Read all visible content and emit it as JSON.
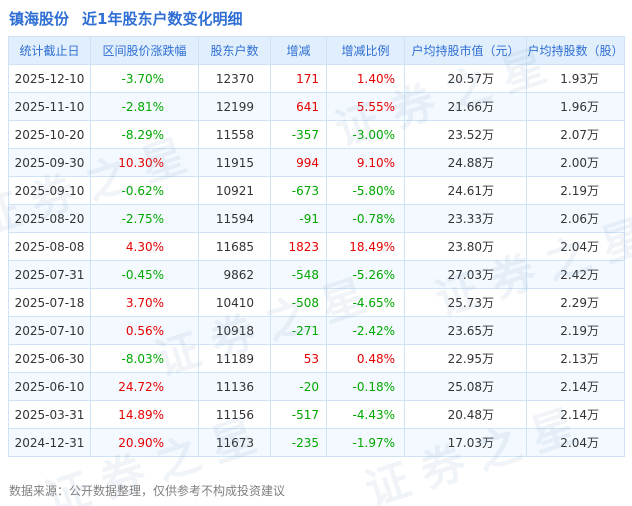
{
  "title": {
    "stock": "镇海股份",
    "report": "近1年股东户数变化明细"
  },
  "chart_data": {
    "type": "table",
    "title": "镇海股份 近1年股东户数变化明细",
    "columns": [
      {
        "key": "date",
        "label": "统计截止日",
        "signed": false
      },
      {
        "key": "range_change",
        "label": "区间股价涨跌幅",
        "signed": true
      },
      {
        "key": "holders",
        "label": "股东户数",
        "signed": false
      },
      {
        "key": "delta",
        "label": "增减",
        "signed": true
      },
      {
        "key": "delta_pct",
        "label": "增减比例",
        "signed": true
      },
      {
        "key": "avg_market_value",
        "label": "户均持股市值（元）",
        "signed": false
      },
      {
        "key": "avg_shares",
        "label": "户均持股数（股）",
        "signed": false
      }
    ],
    "rows": [
      {
        "date": "2025-12-10",
        "range_change": "-3.70%",
        "holders": "12370",
        "delta": "171",
        "delta_pct": "1.40%",
        "avg_market_value": "20.57万",
        "avg_shares": "1.93万"
      },
      {
        "date": "2025-11-10",
        "range_change": "-2.81%",
        "holders": "12199",
        "delta": "641",
        "delta_pct": "5.55%",
        "avg_market_value": "21.66万",
        "avg_shares": "1.96万"
      },
      {
        "date": "2025-10-20",
        "range_change": "-8.29%",
        "holders": "11558",
        "delta": "-357",
        "delta_pct": "-3.00%",
        "avg_market_value": "23.52万",
        "avg_shares": "2.07万"
      },
      {
        "date": "2025-09-30",
        "range_change": "10.30%",
        "holders": "11915",
        "delta": "994",
        "delta_pct": "9.10%",
        "avg_market_value": "24.88万",
        "avg_shares": "2.00万"
      },
      {
        "date": "2025-09-10",
        "range_change": "-0.62%",
        "holders": "10921",
        "delta": "-673",
        "delta_pct": "-5.80%",
        "avg_market_value": "24.61万",
        "avg_shares": "2.19万"
      },
      {
        "date": "2025-08-20",
        "range_change": "-2.75%",
        "holders": "11594",
        "delta": "-91",
        "delta_pct": "-0.78%",
        "avg_market_value": "23.33万",
        "avg_shares": "2.06万"
      },
      {
        "date": "2025-08-08",
        "range_change": "4.30%",
        "holders": "11685",
        "delta": "1823",
        "delta_pct": "18.49%",
        "avg_market_value": "23.80万",
        "avg_shares": "2.04万"
      },
      {
        "date": "2025-07-31",
        "range_change": "-0.45%",
        "holders": "9862",
        "delta": "-548",
        "delta_pct": "-5.26%",
        "avg_market_value": "27.03万",
        "avg_shares": "2.42万"
      },
      {
        "date": "2025-07-18",
        "range_change": "3.70%",
        "holders": "10410",
        "delta": "-508",
        "delta_pct": "-4.65%",
        "avg_market_value": "25.73万",
        "avg_shares": "2.29万"
      },
      {
        "date": "2025-07-10",
        "range_change": "0.56%",
        "holders": "10918",
        "delta": "-271",
        "delta_pct": "-2.42%",
        "avg_market_value": "23.65万",
        "avg_shares": "2.19万"
      },
      {
        "date": "2025-06-30",
        "range_change": "-8.03%",
        "holders": "11189",
        "delta": "53",
        "delta_pct": "0.48%",
        "avg_market_value": "22.95万",
        "avg_shares": "2.13万"
      },
      {
        "date": "2025-06-10",
        "range_change": "24.72%",
        "holders": "11136",
        "delta": "-20",
        "delta_pct": "-0.18%",
        "avg_market_value": "25.08万",
        "avg_shares": "2.14万"
      },
      {
        "date": "2025-03-31",
        "range_change": "14.89%",
        "holders": "11156",
        "delta": "-517",
        "delta_pct": "-4.43%",
        "avg_market_value": "20.48万",
        "avg_shares": "2.14万"
      },
      {
        "date": "2024-12-31",
        "range_change": "20.90%",
        "holders": "11673",
        "delta": "-235",
        "delta_pct": "-1.97%",
        "avg_market_value": "17.03万",
        "avg_shares": "2.04万"
      }
    ]
  },
  "footer": {
    "note": "数据来源：公开数据整理，仅供参考不构成投资建议"
  },
  "watermark": {
    "text": "证券之星"
  },
  "colors": {
    "accent": "#2f6ed4",
    "positive": "#e60000",
    "negative": "#00a800",
    "header_bg": "#e1effc",
    "border": "#cfe3f6",
    "stripe": "#f3f9fe"
  }
}
